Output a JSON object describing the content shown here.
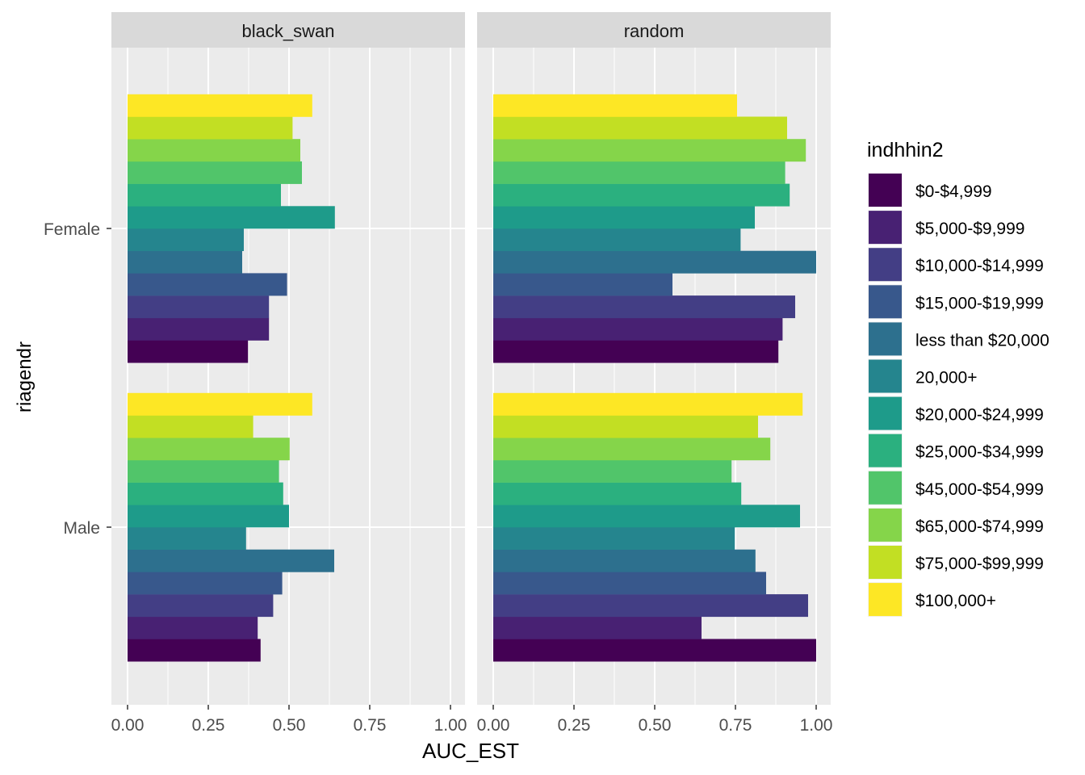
{
  "chart_data": {
    "type": "bar",
    "orientation": "horizontal",
    "xlabel": "AUC_EST",
    "ylabel": "riagendr",
    "xlim": [
      0,
      1
    ],
    "x_ticks": [
      "0.00",
      "0.25",
      "0.50",
      "0.75",
      "1.00"
    ],
    "categories": [
      "Female",
      "Male"
    ],
    "legend": {
      "title": "indhhin2",
      "placement": "right",
      "entries": [
        {
          "label": "$0-$4,999",
          "color": "#440154"
        },
        {
          "label": "$5,000-$9,999",
          "color": "#482173"
        },
        {
          "label": "$10,000-$14,999",
          "color": "#433E85"
        },
        {
          "label": "$15,000-$19,999",
          "color": "#38588C"
        },
        {
          "label": "less than $20,000",
          "color": "#2D708E"
        },
        {
          "label": "20,000+",
          "color": "#25858E"
        },
        {
          "label": "$20,000-$24,999",
          "color": "#1E9B8A"
        },
        {
          "label": "$25,000-$34,999",
          "color": "#2BB07F"
        },
        {
          "label": "$45,000-$54,999",
          "color": "#51C56A"
        },
        {
          "label": "$65,000-$74,999",
          "color": "#85D54A"
        },
        {
          "label": "$75,000-$99,999",
          "color": "#C2DF23"
        },
        {
          "label": "$100,000+",
          "color": "#FDE725"
        }
      ]
    },
    "panels": [
      {
        "strip": "black_swan",
        "values": {
          "Female": [
            0.373,
            0.438,
            0.438,
            0.494,
            0.355,
            0.36,
            0.642,
            0.475,
            0.54,
            0.535,
            0.511,
            0.572
          ],
          "Male": [
            0.412,
            0.403,
            0.451,
            0.479,
            0.64,
            0.367,
            0.5,
            0.482,
            0.469,
            0.502,
            0.389,
            0.572
          ]
        }
      },
      {
        "strip": "random",
        "values": {
          "Female": [
            0.883,
            0.896,
            0.935,
            0.555,
            1.0,
            0.766,
            0.81,
            0.918,
            0.904,
            0.968,
            0.91,
            0.755
          ],
          "Male": [
            1.0,
            0.645,
            0.975,
            0.845,
            0.812,
            0.748,
            0.95,
            0.768,
            0.738,
            0.858,
            0.82,
            0.958
          ]
        }
      }
    ]
  }
}
